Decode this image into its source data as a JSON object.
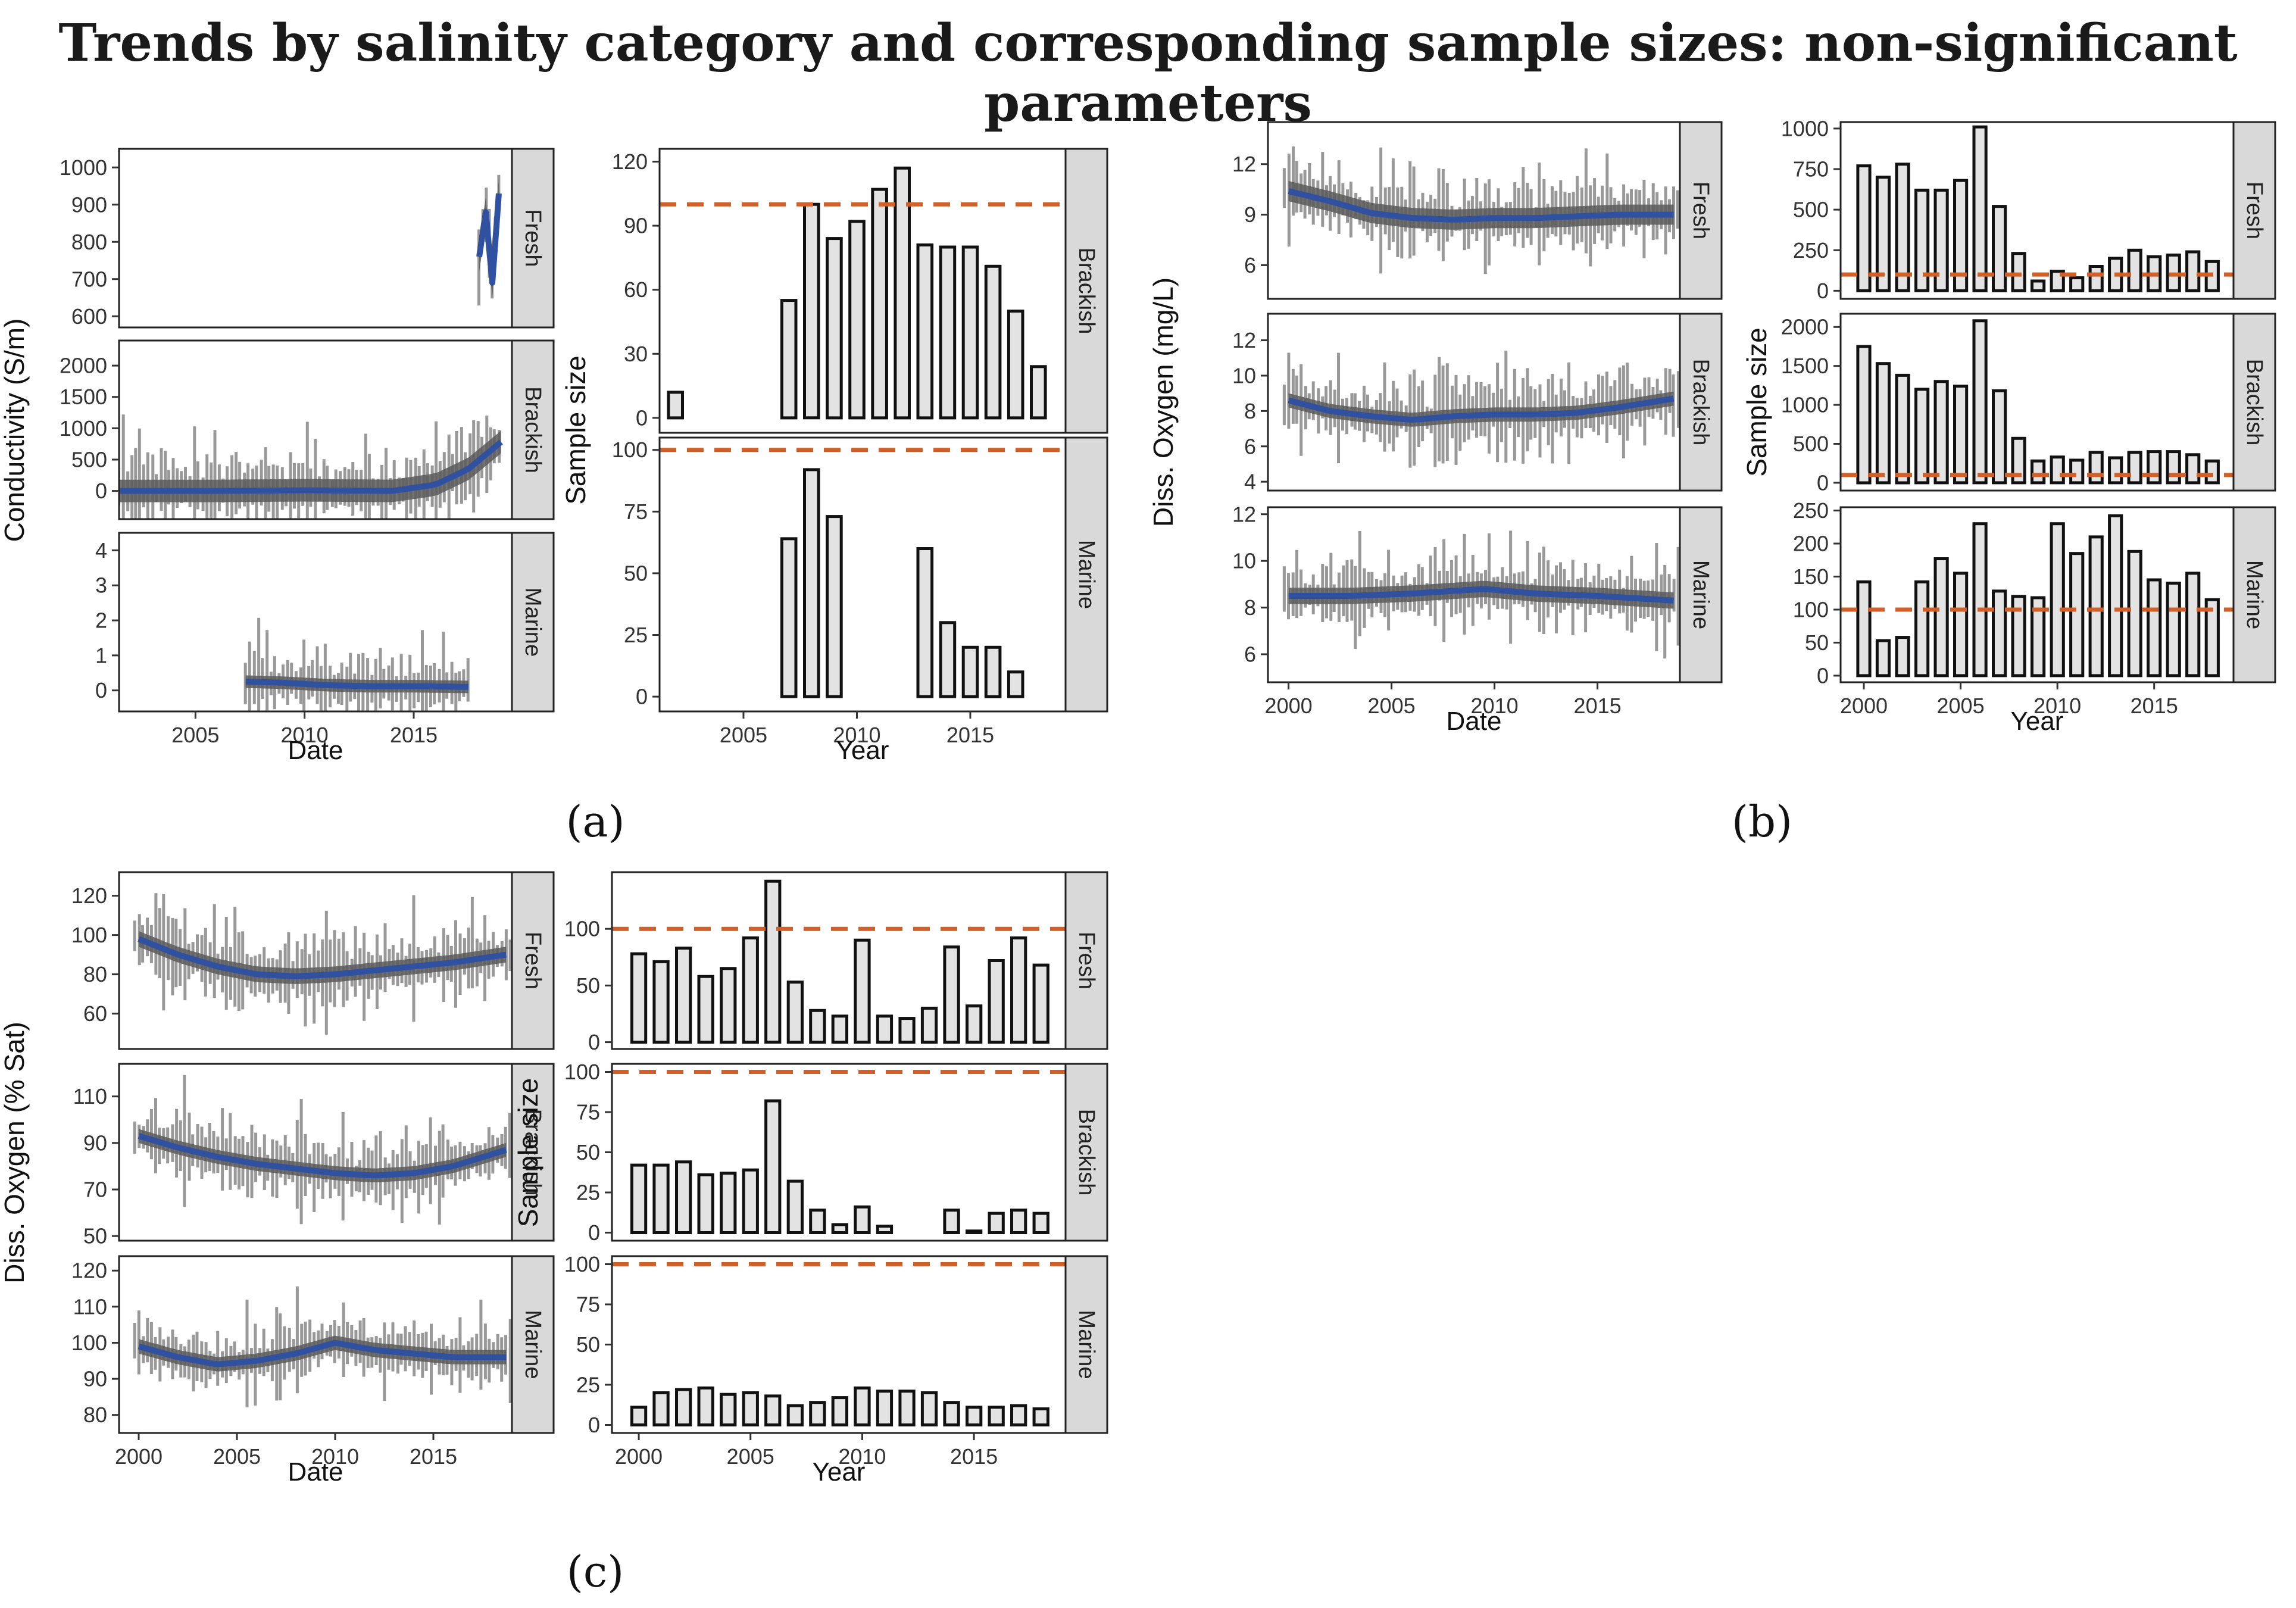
{
  "title": "Trends by salinity category and corresponding sample sizes: non-significant parameters",
  "panel_labels": [
    "(a)",
    "(b)",
    "(c)"
  ],
  "colors": {
    "accent_line": "#3050a0",
    "threshold": "#d0602a",
    "bar_fill": "#e3e3e3",
    "strip": "#d9d9d9",
    "raw": "#999999",
    "ribbon": "#5a5a5a"
  },
  "chart_data": [
    {
      "id": "a-trend",
      "type": "line",
      "xlabel": "Date",
      "ylabel": "Conductivity (S/m)",
      "xlim": [
        2001.5,
        2019.5
      ],
      "xticks": [
        2005,
        2010,
        2015
      ],
      "facets": [
        {
          "name": "Fresh",
          "ylim": [
            570,
            1050
          ],
          "yticks": [
            600,
            700,
            800,
            900,
            1000
          ],
          "raw_range": [
            2018.0,
            2018.9
          ],
          "trend": {
            "x": [
              2018.0,
              2018.3,
              2018.6,
              2018.9
            ],
            "y": [
              760,
              880,
              690,
              930
            ]
          },
          "band": 40
        },
        {
          "name": "Brackish",
          "ylim": [
            -450,
            2400
          ],
          "yticks": [
            0,
            500,
            1000,
            1500,
            2000
          ],
          "raw_range": [
            2001.5,
            2018.9
          ],
          "trend": {
            "x": [
              2001.5,
              2006,
              2010,
              2014,
              2016,
              2017.5,
              2019
            ],
            "y": [
              0,
              0,
              10,
              0,
              100,
              350,
              780
            ]
          },
          "band": 180
        },
        {
          "name": "Marine",
          "ylim": [
            -0.6,
            4.5
          ],
          "yticks": [
            0,
            1,
            2,
            3,
            4
          ],
          "raw_range": [
            2007.3,
            2017.5
          ],
          "trend": {
            "x": [
              2007.3,
              2009,
              2011,
              2013,
              2015,
              2017.5
            ],
            "y": [
              0.25,
              0.22,
              0.15,
              0.12,
              0.12,
              0.1
            ]
          },
          "band": 0.18
        }
      ]
    },
    {
      "id": "a-size",
      "type": "bar",
      "xlabel": "Year",
      "ylabel": "Sample size",
      "threshold": 100,
      "xlim": [
        2001.3,
        2019.2
      ],
      "xticks": [
        2005,
        2010,
        2015
      ],
      "facets": [
        {
          "name": "Brackish",
          "ylim": [
            -7,
            126
          ],
          "yticks": [
            0,
            30,
            60,
            90,
            120
          ],
          "x": [
            2002,
            2003,
            2004,
            2005,
            2006,
            2007,
            2008,
            2009,
            2010,
            2011,
            2012,
            2013,
            2014,
            2015,
            2016,
            2017,
            2018
          ],
          "values": [
            12,
            0,
            0,
            0,
            0,
            55,
            100,
            84,
            92,
            107,
            117,
            81,
            80,
            80,
            71,
            50,
            24
          ]
        },
        {
          "name": "Marine",
          "ylim": [
            -6,
            105
          ],
          "yticks": [
            0,
            25,
            50,
            75,
            100
          ],
          "x": [
            2002,
            2003,
            2004,
            2005,
            2006,
            2007,
            2008,
            2009,
            2010,
            2011,
            2012,
            2013,
            2014,
            2015,
            2016,
            2017,
            2018
          ],
          "values": [
            0,
            0,
            0,
            0,
            0,
            64,
            92,
            73,
            0,
            0,
            0,
            60,
            30,
            20,
            20,
            10,
            0
          ]
        }
      ]
    },
    {
      "id": "b-trend",
      "type": "line",
      "xlabel": "Date",
      "ylabel": "Diss. Oxygen (mg/L)",
      "xlim": [
        1999.0,
        2019.0
      ],
      "xticks": [
        2000,
        2005,
        2010,
        2015
      ],
      "facets": [
        {
          "name": "Fresh",
          "ylim": [
            4.0,
            14.5
          ],
          "yticks": [
            6,
            9,
            12
          ],
          "raw_range": [
            1999.8,
            2018.9
          ],
          "trend": {
            "x": [
              2000,
              2002,
              2004,
              2006,
              2008,
              2010,
              2012,
              2014,
              2016,
              2018.7
            ],
            "y": [
              10.4,
              9.8,
              9.1,
              8.8,
              8.7,
              8.8,
              8.8,
              8.9,
              9.0,
              9.0
            ]
          },
          "band": 0.6
        },
        {
          "name": "Brackish",
          "ylim": [
            3.5,
            13.5
          ],
          "yticks": [
            4,
            6,
            8,
            10,
            12
          ],
          "raw_range": [
            1999.8,
            2018.9
          ],
          "trend": {
            "x": [
              2000,
              2002,
              2004,
              2006,
              2008,
              2010,
              2012,
              2014,
              2016,
              2018.7
            ],
            "y": [
              8.6,
              8.0,
              7.7,
              7.5,
              7.7,
              7.8,
              7.8,
              7.9,
              8.2,
              8.7
            ]
          },
          "band": 0.4
        },
        {
          "name": "Marine",
          "ylim": [
            4.8,
            12.3
          ],
          "yticks": [
            6,
            8,
            10,
            12
          ],
          "raw_range": [
            1999.8,
            2018.9
          ],
          "trend": {
            "x": [
              2000,
              2003,
              2006,
              2009.5,
              2012,
              2015,
              2018.7
            ],
            "y": [
              8.5,
              8.5,
              8.6,
              8.8,
              8.6,
              8.5,
              8.3
            ]
          },
          "band": 0.35
        }
      ]
    },
    {
      "id": "b-size",
      "type": "bar",
      "xlabel": "Year",
      "ylabel": "Sample size",
      "threshold": 100,
      "xlim": [
        1998.8,
        2019.1
      ],
      "xticks": [
        2000,
        2005,
        2010,
        2015
      ],
      "facets": [
        {
          "name": "Fresh",
          "ylim": [
            -50,
            1040
          ],
          "yticks": [
            0,
            250,
            500,
            750,
            1000
          ],
          "x": [
            2000,
            2001,
            2002,
            2003,
            2004,
            2005,
            2006,
            2007,
            2008,
            2009,
            2010,
            2011,
            2012,
            2013,
            2014,
            2015,
            2016,
            2017,
            2018
          ],
          "values": [
            770,
            700,
            780,
            620,
            620,
            680,
            1010,
            520,
            230,
            60,
            120,
            80,
            150,
            200,
            250,
            210,
            220,
            240,
            180
          ]
        },
        {
          "name": "Brackish",
          "ylim": [
            -100,
            2170
          ],
          "yticks": [
            0,
            500,
            1000,
            1500,
            2000
          ],
          "x": [
            2000,
            2001,
            2002,
            2003,
            2004,
            2005,
            2006,
            2007,
            2008,
            2009,
            2010,
            2011,
            2012,
            2013,
            2014,
            2015,
            2016,
            2017,
            2018
          ],
          "values": [
            1750,
            1530,
            1380,
            1200,
            1300,
            1240,
            2080,
            1180,
            570,
            280,
            330,
            290,
            390,
            320,
            390,
            400,
            400,
            360,
            280
          ]
        },
        {
          "name": "Marine",
          "ylim": [
            -10,
            255
          ],
          "yticks": [
            0,
            50,
            100,
            150,
            200,
            250
          ],
          "x": [
            2000,
            2001,
            2002,
            2003,
            2004,
            2005,
            2006,
            2007,
            2008,
            2009,
            2010,
            2011,
            2012,
            2013,
            2014,
            2015,
            2016,
            2017,
            2018
          ],
          "values": [
            142,
            53,
            58,
            142,
            177,
            155,
            230,
            128,
            120,
            118,
            230,
            185,
            210,
            242,
            188,
            145,
            140,
            155,
            115
          ]
        }
      ]
    },
    {
      "id": "c-trend",
      "type": "line",
      "xlabel": "Date",
      "ylabel": "Diss. Oxygen (% Sat)",
      "xlim": [
        1999.0,
        2019.0
      ],
      "xticks": [
        2000,
        2005,
        2010,
        2015
      ],
      "facets": [
        {
          "name": "Fresh",
          "ylim": [
            42,
            132
          ],
          "yticks": [
            60,
            80,
            100,
            120
          ],
          "raw_range": [
            1999.8,
            2018.9
          ],
          "trend": {
            "x": [
              2000,
              2002,
              2004,
              2006,
              2008,
              2010,
              2012,
              2014,
              2016,
              2018.7
            ],
            "y": [
              98,
              90,
              84,
              80,
              79,
              80,
              82,
              84,
              86,
              90
            ]
          },
          "band": 4
        },
        {
          "name": "Brackish",
          "ylim": [
            48,
            124
          ],
          "yticks": [
            50,
            70,
            90,
            110
          ],
          "raw_range": [
            1999.8,
            2018.9
          ],
          "trend": {
            "x": [
              2000,
              2002,
              2004,
              2006,
              2008,
              2010,
              2012,
              2014,
              2016,
              2018.7
            ],
            "y": [
              93,
              88,
              84,
              81,
              79,
              77,
              76,
              77,
              80,
              87
            ]
          },
          "band": 3
        },
        {
          "name": "Marine",
          "ylim": [
            75,
            124
          ],
          "yticks": [
            80,
            90,
            100,
            110,
            120
          ],
          "raw_range": [
            1999.8,
            2018.9
          ],
          "trend": {
            "x": [
              2000,
              2002,
              2004,
              2006,
              2008,
              2010,
              2012,
              2014,
              2016,
              2018.7
            ],
            "y": [
              99,
              96,
              94,
              95,
              97,
              100,
              98,
              97,
              96,
              96
            ]
          },
          "band": 2
        }
      ]
    },
    {
      "id": "c-size",
      "type": "bar",
      "xlabel": "Year",
      "ylabel": "Sample size",
      "threshold": 100,
      "xlim": [
        1998.8,
        2019.1
      ],
      "xticks": [
        2000,
        2005,
        2010,
        2015
      ],
      "facets": [
        {
          "name": "Fresh",
          "ylim": [
            -6,
            150
          ],
          "yticks": [
            0,
            50,
            100
          ],
          "x": [
            2000,
            2001,
            2002,
            2003,
            2004,
            2005,
            2006,
            2007,
            2008,
            2009,
            2010,
            2011,
            2012,
            2013,
            2014,
            2015,
            2016,
            2017,
            2018
          ],
          "values": [
            78,
            71,
            83,
            58,
            65,
            92,
            142,
            53,
            28,
            23,
            90,
            23,
            21,
            30,
            84,
            32,
            72,
            92,
            68
          ]
        },
        {
          "name": "Brackish",
          "ylim": [
            -5,
            105
          ],
          "yticks": [
            0,
            25,
            50,
            75,
            100
          ],
          "x": [
            2000,
            2001,
            2002,
            2003,
            2004,
            2005,
            2006,
            2007,
            2008,
            2009,
            2010,
            2011,
            2012,
            2013,
            2014,
            2015,
            2016,
            2017,
            2018
          ],
          "values": [
            42,
            42,
            44,
            36,
            37,
            39,
            82,
            32,
            14,
            5,
            16,
            4,
            0,
            0,
            14,
            1,
            12,
            14,
            12
          ]
        },
        {
          "name": "Marine",
          "ylim": [
            -5,
            105
          ],
          "yticks": [
            0,
            25,
            50,
            75,
            100
          ],
          "x": [
            2000,
            2001,
            2002,
            2003,
            2004,
            2005,
            2006,
            2007,
            2008,
            2009,
            2010,
            2011,
            2012,
            2013,
            2014,
            2015,
            2016,
            2017,
            2018
          ],
          "values": [
            11,
            20,
            22,
            23,
            19,
            20,
            18,
            12,
            14,
            17,
            23,
            21,
            21,
            20,
            14,
            11,
            11,
            12,
            10
          ]
        }
      ]
    }
  ]
}
